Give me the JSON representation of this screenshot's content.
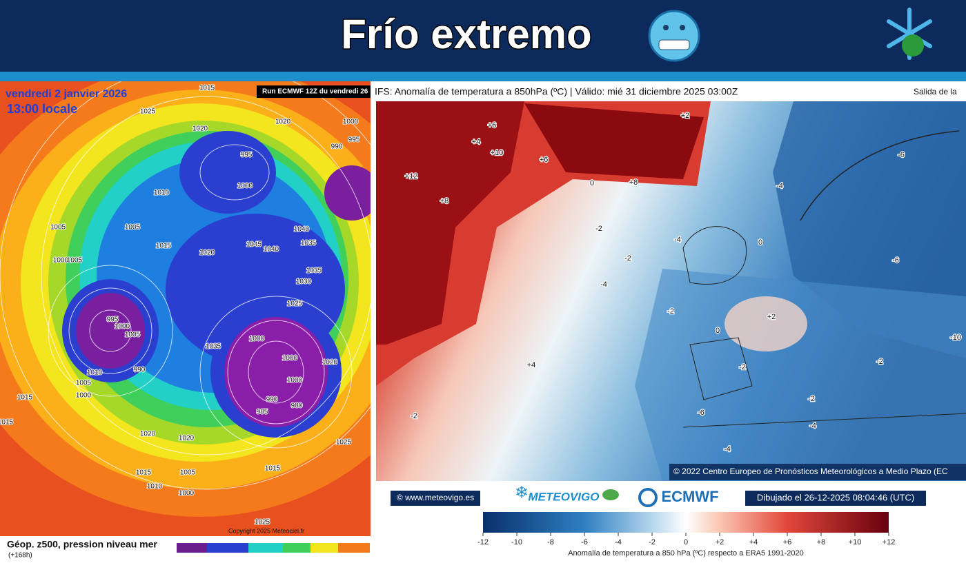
{
  "header": {
    "title": "Frío extremo"
  },
  "left_map": {
    "date": "vendredi 2 janvier 2026",
    "time": "13:00 locale",
    "run": "Run ECMWF 12Z du vendredi 26",
    "copyright": "Copyright 2025 Meteociel.fr",
    "caption": "Géop. z500, pression niveau mer",
    "lead": "(+168h)",
    "contour_labels": [
      "1015",
      "1025",
      "1020",
      "1020",
      "1000",
      "995",
      "990",
      "995",
      "1010",
      "1005",
      "1015",
      "1020",
      "1000",
      "1045",
      "1040",
      "1035",
      "1040",
      "1035",
      "1030",
      "1025",
      "995",
      "1000",
      "1005",
      "990",
      "1010",
      "1005",
      "1000",
      "1015",
      "1035",
      "1000",
      "1000",
      "1000",
      "990",
      "980",
      "985",
      "1020",
      "1025",
      "1020",
      "1020",
      "1005",
      "1000",
      "1015",
      "1010",
      "1015",
      "1025",
      "1015",
      "1005",
      "1000",
      "1005"
    ]
  },
  "right_map": {
    "title": "IFS: Anomalía de temperatura a 850hPa  (ºC) | Válido: mié 31 diciembre 2025 03:00Z",
    "run_note": "Salida de la",
    "credit": "© 2022 Centro Europeo de Pronósticos Meteorológicos a Medio Plazo (EC",
    "contour_labels": [
      "+6",
      "+4",
      "+10",
      "+6",
      "+2",
      "+12",
      "+8",
      "+8",
      "0",
      "-2",
      "-2",
      "-4",
      "-2",
      "+2",
      "0",
      "-4",
      "-6",
      "-6",
      "-10",
      "+4",
      "-2",
      "-4",
      "-4",
      "-2",
      "-6",
      "-2",
      "-2",
      "0",
      "-4"
    ]
  },
  "footer": {
    "site": "© www.meteovigo.es",
    "brand": "METEOVIGO",
    "ecmwf": "ECMWF",
    "drawn": "Dibujado el 26-12-2025 08:04:46 (UTC)"
  },
  "colorbar": {
    "lim": [
      -12,
      12
    ],
    "ticks": [
      -12,
      -10,
      -8,
      -6,
      -4,
      -2,
      0,
      {
        "value": 2,
        "label": "+2"
      },
      {
        "value": 4,
        "label": "+4"
      },
      {
        "value": 6,
        "label": "+6"
      },
      {
        "value": 8,
        "label": "+8"
      },
      {
        "value": 10,
        "label": "+10"
      },
      {
        "value": 12,
        "label": "+12"
      }
    ],
    "label": "Anomalía de temperatura a 850 hPa (ºC) respecto a ERA5 1991-2020"
  }
}
